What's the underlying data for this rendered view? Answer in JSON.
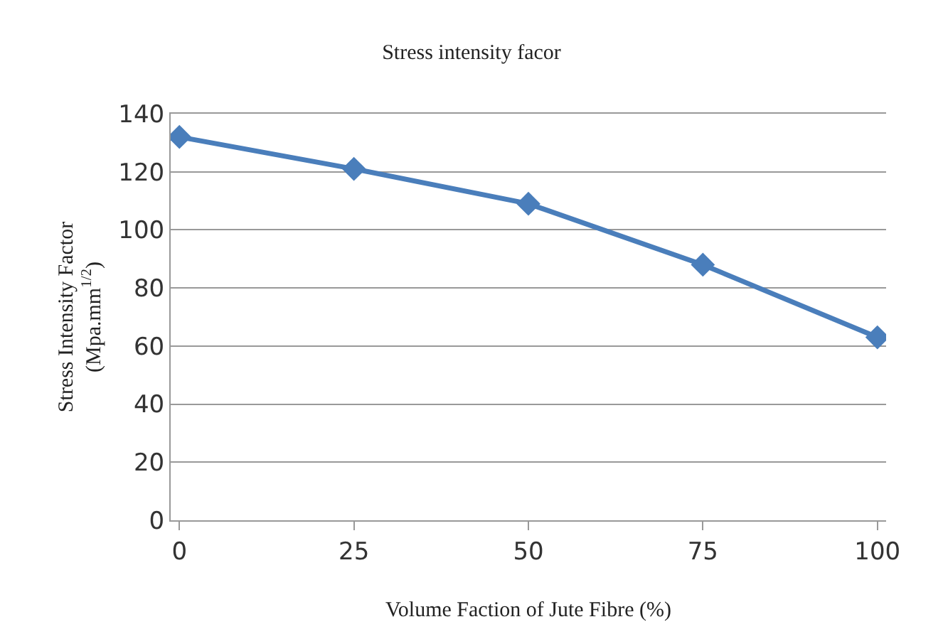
{
  "chart_data": {
    "type": "line",
    "title": "Stress intensity facor",
    "xlabel": "Volume Faction of Jute Fibre (%)",
    "ylabel": "Stress Intensity Factor\n(Mpa.mm$^{1/2}$)",
    "categories": [
      "0",
      "25",
      "50",
      "75",
      "100"
    ],
    "series": [
      {
        "color": "#4a7ebb",
        "values": [
          132,
          121,
          109,
          88,
          63
        ]
      }
    ],
    "ylim": [
      0,
      140
    ],
    "yticks": [
      0,
      20,
      40,
      60,
      80,
      100,
      120,
      140
    ],
    "grid": "y",
    "marker": "diamond",
    "line_style": "solid",
    "legend": false
  }
}
